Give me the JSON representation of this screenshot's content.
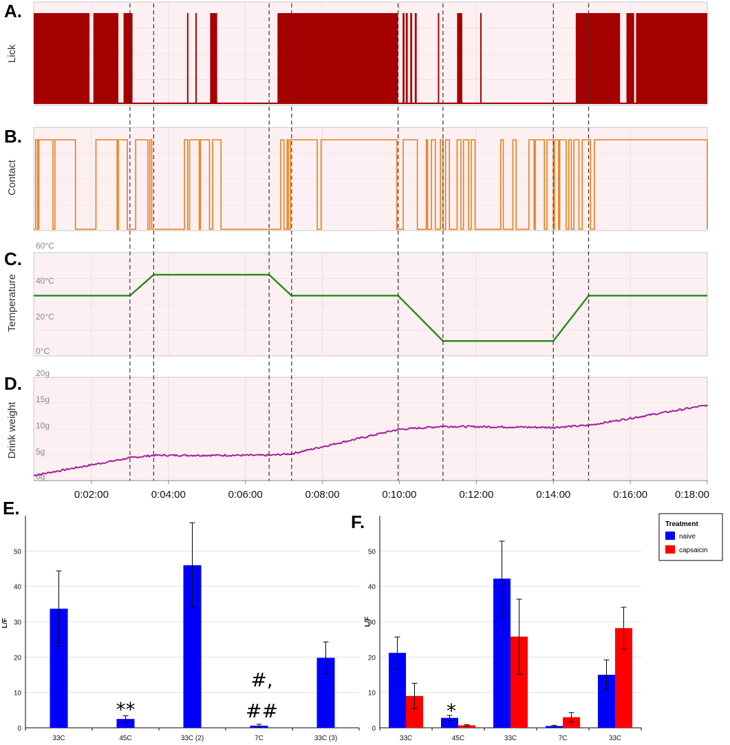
{
  "chart_data": [
    {
      "panel": "A.",
      "type": "line",
      "ylabel": "Lick",
      "color": "#a50000",
      "description_values": "binary lick signal (filled 1=licking) over time in seconds",
      "x_range_seconds": [
        30,
        1080
      ],
      "lick_on_intervals_seconds": [
        [
          30,
          117
        ],
        [
          123,
          162
        ],
        [
          170,
          184
        ],
        [
          269,
          270
        ],
        [
          282,
          283
        ],
        [
          305,
          316
        ],
        [
          410,
          598
        ],
        [
          605,
          608
        ],
        [
          610,
          613
        ],
        [
          617,
          620
        ],
        [
          624,
          627
        ],
        [
          660,
          662
        ],
        [
          690,
          698
        ],
        [
          726,
          727
        ],
        [
          875,
          944
        ],
        [
          954,
          966
        ],
        [
          969,
          1080
        ]
      ]
    },
    {
      "panel": "B.",
      "type": "line",
      "ylabel": "Contact",
      "color": "#e87d14",
      "x_range_seconds": [
        30,
        1080
      ],
      "contact_on_intervals_seconds": [
        [
          33,
          36
        ],
        [
          38,
          60
        ],
        [
          63,
          95
        ],
        [
          127,
          160
        ],
        [
          162,
          176
        ],
        [
          189,
          208
        ],
        [
          211,
          214
        ],
        [
          265,
          270
        ],
        [
          273,
          288
        ],
        [
          290,
          304
        ],
        [
          309,
          322
        ],
        [
          415,
          420
        ],
        [
          425,
          427
        ],
        [
          430,
          472
        ],
        [
          478,
          596
        ],
        [
          606,
          628
        ],
        [
          642,
          644
        ],
        [
          650,
          656
        ],
        [
          664,
          668
        ],
        [
          672,
          678
        ],
        [
          690,
          696
        ],
        [
          700,
          708
        ],
        [
          712,
          718
        ],
        [
          758,
          762
        ],
        [
          777,
          782
        ],
        [
          802,
          810
        ],
        [
          812,
          826
        ],
        [
          830,
          840
        ],
        [
          842,
          848
        ],
        [
          850,
          860
        ],
        [
          864,
          868
        ],
        [
          872,
          880
        ],
        [
          885,
          898
        ],
        [
          904,
          1080
        ]
      ]
    },
    {
      "panel": "C.",
      "type": "line",
      "ylabel": "Temperature",
      "yticks": [
        "60°C",
        "40°C",
        "20°C",
        "0°C"
      ],
      "ylim": [
        0,
        60
      ],
      "color": "#2e8b1e",
      "x_seconds": [
        30,
        180,
        217,
        397,
        432,
        598,
        668,
        840,
        895,
        1080
      ],
      "y_celsius": [
        33,
        33,
        45,
        45,
        33,
        33,
        7,
        7,
        33,
        33
      ]
    },
    {
      "panel": "D.",
      "type": "line",
      "ylabel": "Drink weight",
      "yticks": [
        "20g",
        "15g",
        "10g",
        "5g",
        "0g"
      ],
      "ylim": [
        0,
        20
      ],
      "color": "#a020a0",
      "x_seconds": [
        30,
        180,
        217,
        397,
        432,
        598,
        668,
        840,
        895,
        1080
      ],
      "y_grams": [
        0.2,
        3.6,
        4.1,
        4.1,
        4.4,
        9.1,
        9.7,
        9.5,
        9.9,
        13.8
      ],
      "xtick_labels": [
        "0:02:00",
        "0:04:00",
        "0:06:00",
        "0:08:00",
        "0:10:00",
        "0:12:00",
        "0:14:00",
        "0:16:00",
        "0:18:00"
      ],
      "xtick_seconds": [
        120,
        240,
        360,
        480,
        600,
        720,
        840,
        960,
        1080
      ],
      "event_lines_seconds": [
        180,
        217,
        397,
        432,
        598,
        668,
        840,
        895
      ]
    },
    {
      "panel": "E.",
      "type": "bar",
      "ylabel": "L/F",
      "ylim": [
        0,
        60
      ],
      "yticks": [
        0,
        10,
        20,
        30,
        40,
        50
      ],
      "categories": [
        "33C",
        "45C",
        "33C (2)",
        "7C",
        "33C (3)"
      ],
      "series": [
        {
          "name": "naive",
          "color": "#0000ff",
          "values": [
            33.7,
            2.5,
            46,
            0.6,
            19.8
          ],
          "error": [
            10.7,
            0.9,
            12,
            0.4,
            4.5
          ]
        }
      ],
      "annotations": [
        {
          "category": "45C",
          "text": "**"
        },
        {
          "category": "7C",
          "text": "#,"
        },
        {
          "category": "7C",
          "text": "##"
        }
      ]
    },
    {
      "panel": "F.",
      "type": "bar",
      "ylabel": "L/F",
      "ylim": [
        0,
        60
      ],
      "yticks": [
        0,
        10,
        20,
        30,
        40,
        50
      ],
      "categories": [
        "33C",
        "45C",
        "33C",
        "7C",
        "33C"
      ],
      "series": [
        {
          "name": "naive",
          "color": "#0000ff",
          "values": [
            21.2,
            2.8,
            42.2,
            0.5,
            15
          ],
          "error": [
            4.5,
            0.7,
            10.6,
            0.2,
            4.2
          ]
        },
        {
          "name": "capsaicin",
          "color": "#ff0000",
          "values": [
            9,
            0.7,
            25.8,
            3,
            28.2
          ],
          "error": [
            3.6,
            0.2,
            10.6,
            1.3,
            5.9
          ]
        }
      ],
      "legend": {
        "title": "Treatment",
        "position": "top-right"
      },
      "annotations": [
        {
          "category": "45C",
          "text": "*"
        }
      ]
    }
  ]
}
